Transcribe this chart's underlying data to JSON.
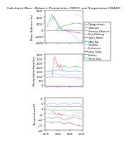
{
  "title": "Calculated Mass - Balance, Precipitation (GPCC) and Temperature (ERA40)",
  "legend_entries": [
    {
      "label": "Djangankoun",
      "color": "#ff8888"
    },
    {
      "label": "Doangou",
      "color": "#44bb44"
    },
    {
      "label": "Kharner_Gharour",
      "color": "#cc88ff"
    },
    {
      "label": "Sher_Dhanug",
      "color": "#888888"
    },
    {
      "label": "Tipoo_Bandi",
      "color": "#bb44bb"
    },
    {
      "label": "Nala_Nai",
      "color": "#00cccc"
    },
    {
      "label": "Kotakez",
      "color": "#ffaacc"
    },
    {
      "label": "Shisherum",
      "color": "#aaaaff"
    },
    {
      "label": "Lang_Song",
      "color": "#884400"
    },
    {
      "label": "Gahkoz",
      "color": "#aa88cc"
    },
    {
      "label": "Phero_Kazi",
      "color": "#44dddd"
    }
  ],
  "panel1": {
    "ylabel": "Mass Balance (m)",
    "ylim": [
      -4000,
      6000
    ],
    "yticks": [
      -4000,
      -2000,
      0,
      2000,
      4000,
      6000
    ],
    "series": [
      {
        "color": "#ff5555",
        "data_x": [
          1975,
          1976,
          1977,
          1978,
          1979,
          1980,
          1981,
          1982,
          1983,
          1984
        ],
        "data_y": [
          3200,
          4200,
          3800,
          3000,
          2400,
          1800,
          1200,
          600,
          200,
          -400
        ]
      },
      {
        "color": "#00cccc",
        "data_x": [
          1970,
          1971,
          1972,
          1973,
          1974,
          1975,
          1976,
          1977,
          1978,
          1979,
          1980,
          1981,
          1982,
          1983,
          1984,
          1985,
          1986,
          1987,
          1988,
          1989,
          1990,
          1991,
          1992
        ],
        "data_y": [
          800,
          1200,
          1800,
          2800,
          3800,
          4800,
          4200,
          3500,
          2800,
          2200,
          1600,
          1000,
          600,
          400,
          200,
          100,
          150,
          200,
          300,
          150,
          100,
          120,
          150
        ]
      },
      {
        "color": "#44bb44",
        "data_x": [
          1978,
          1979,
          1980,
          1981,
          1982,
          1983,
          1984,
          1985,
          1986,
          1987,
          1988,
          1989,
          1990,
          1991,
          1992,
          1993,
          1994,
          1995,
          1996,
          1997,
          1998,
          1999,
          2000
        ],
        "data_y": [
          200,
          300,
          500,
          600,
          900,
          1000,
          1100,
          1200,
          1300,
          1400,
          1500,
          1600,
          1700,
          1800,
          1900,
          1950,
          2000,
          2050,
          2100,
          2050,
          1950,
          1900,
          1850
        ]
      },
      {
        "color": "#ccaaff",
        "data_x": [
          1985,
          1986,
          1987,
          1988,
          1989,
          1990,
          1991,
          1992,
          1993,
          1994,
          1995,
          1996,
          1997,
          1998,
          1999,
          2000
        ],
        "data_y": [
          -100,
          -200,
          -300,
          -500,
          -700,
          -900,
          -1100,
          -1400,
          -1700,
          -2000,
          -2300,
          -2600,
          -2900,
          -3200,
          -3500,
          -3800
        ]
      },
      {
        "color": "#bb44bb",
        "data_x": [
          1985,
          1988,
          1990,
          1993,
          1996,
          1998,
          2000
        ],
        "data_y": [
          -200,
          -300,
          -500,
          -700,
          -800,
          -900,
          -1000
        ]
      },
      {
        "color": "#888888",
        "data_x": [
          1970,
          1975,
          1980,
          1985,
          1990,
          1995,
          2000
        ],
        "data_y": [
          0,
          0,
          0,
          0,
          0,
          0,
          0
        ]
      },
      {
        "color": "#ffaacc",
        "data_x": [
          1995,
          1996,
          1997,
          1998,
          1999,
          2000
        ],
        "data_y": [
          4800,
          4600,
          4400,
          4500,
          4300,
          4200
        ]
      }
    ]
  },
  "panel2": {
    "ylabel": "Precipitation(mm/yr)",
    "ylim": [
      -200,
      3500
    ],
    "yticks": [
      0,
      500,
      1000,
      1500,
      2000,
      2500,
      3000,
      3500
    ],
    "series": [
      {
        "color": "#ff5555",
        "data_x": [
          1975,
          1976,
          1977,
          1978,
          1979,
          1980,
          1981,
          1982,
          1983,
          1984
        ],
        "data_y": [
          1000,
          2200,
          3200,
          3000,
          2500,
          2200,
          1900,
          2300,
          2000,
          1600
        ]
      },
      {
        "color": "#44bb44",
        "data_x": [
          1978,
          1980,
          1985,
          1990,
          1995,
          2000
        ],
        "data_y": [
          2000,
          2200,
          2100,
          2000,
          2100,
          2000
        ]
      },
      {
        "color": "#00cccc",
        "data_x": [
          1970,
          1975,
          1980,
          1985,
          1990,
          1995,
          2000
        ],
        "data_y": [
          1500,
          1600,
          1700,
          1600,
          1500,
          1600,
          1500
        ]
      },
      {
        "color": "#ccaaff",
        "data_x": [
          1970,
          1975,
          1980,
          1985,
          1990,
          1995,
          2000
        ],
        "data_y": [
          1200,
          1300,
          1200,
          1100,
          1200,
          1100,
          1200
        ]
      },
      {
        "color": "#888888",
        "data_x": [
          1970,
          1975,
          1980,
          1985,
          1990,
          1995,
          2000
        ],
        "data_y": [
          800,
          900,
          850,
          900,
          800,
          850,
          800
        ]
      },
      {
        "color": "#bb44bb",
        "data_x": [
          1970,
          1975,
          1980,
          1985,
          1990,
          1995,
          2000
        ],
        "data_y": [
          -100,
          -100,
          -100,
          -100,
          -100,
          -100,
          -100
        ]
      },
      {
        "color": "#ffaacc",
        "data_x": [
          1995,
          1996,
          1997,
          1998,
          1999,
          2000
        ],
        "data_y": [
          600,
          700,
          550,
          650,
          600,
          580
        ]
      }
    ]
  },
  "panel3": {
    "ylabel": "Temperature(C)",
    "ylim": [
      -20,
      10
    ],
    "yticks": [
      -20,
      -15,
      -10,
      -5,
      0,
      5,
      10
    ],
    "series": [
      {
        "color": "#ff5555",
        "data_x": [
          1975,
          1976,
          1977,
          1978,
          1979,
          1980,
          1981,
          1982,
          1983,
          1984
        ],
        "data_y": [
          -2,
          -3,
          -4,
          -5,
          -6,
          -5,
          -4,
          -6,
          -5,
          -7
        ]
      },
      {
        "color": "#44bb44",
        "data_x": [
          1970,
          1975,
          1980,
          1985,
          1990,
          1995,
          2000
        ],
        "data_y": [
          -1,
          -1,
          -2,
          -1,
          -2,
          -1,
          -2
        ]
      },
      {
        "color": "#44dddd",
        "data_x": [
          1970,
          1975,
          1980,
          1985,
          1990,
          1995,
          2000
        ],
        "data_y": [
          4,
          5,
          4,
          5,
          4,
          5,
          4
        ]
      },
      {
        "color": "#00cccc",
        "data_x": [
          1970,
          1975,
          1980,
          1985,
          1990,
          1995,
          2000
        ],
        "data_y": [
          2,
          2,
          2,
          2,
          2,
          2,
          2
        ]
      },
      {
        "color": "#ccaaff",
        "data_x": [
          1970,
          1975,
          1980,
          1985,
          1990,
          1995,
          2000
        ],
        "data_y": [
          -4,
          -5,
          -6,
          -5,
          -7,
          -6,
          -8
        ]
      },
      {
        "color": "#888888",
        "data_x": [
          1970,
          1975,
          1980,
          1985,
          1990,
          1995,
          2000
        ],
        "data_y": [
          -8,
          -9,
          -8,
          -10,
          -9,
          -8,
          -10
        ]
      },
      {
        "color": "#bb44bb",
        "data_x": [
          1970,
          1975,
          1980,
          1985,
          1990,
          1995,
          2000
        ],
        "data_y": [
          -12,
          -13,
          -12,
          -14,
          -13,
          -15,
          -16
        ]
      },
      {
        "color": "#ffaacc",
        "data_x": [
          1995,
          1996,
          1997,
          1998,
          1999,
          2000
        ],
        "data_y": [
          -3,
          -4,
          -3,
          -5,
          -4,
          -5
        ]
      }
    ]
  },
  "xlim": [
    1969,
    2001
  ],
  "xticks": [
    1970,
    1980,
    1990,
    2000
  ],
  "background_color": "#ffffff",
  "title_fontsize": 3.2,
  "label_fontsize": 3.0,
  "tick_fontsize": 2.5,
  "legend_fontsize": 2.5
}
